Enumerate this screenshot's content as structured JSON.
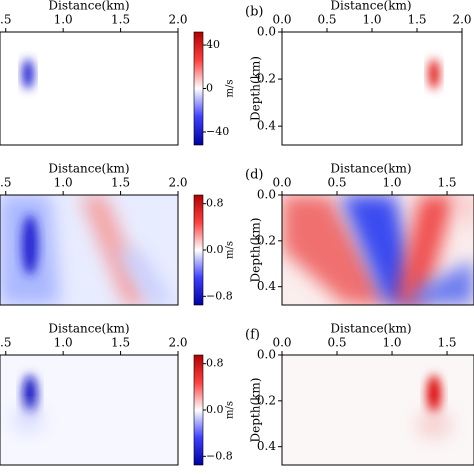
{
  "chart_data": [
    {
      "type": "heatmap",
      "xlabel": "Distance(km)",
      "xlim": [
        0.45,
        2.0
      ],
      "ylim": [
        0,
        0.48
      ],
      "xticks": [
        {
          "value": 0.5,
          "label": ".5"
        },
        {
          "value": 1.0,
          "label": "1.0"
        },
        {
          "value": 1.5,
          "label": "1.5"
        },
        {
          "value": 2.0,
          "label": "2.0"
        }
      ],
      "colorbar": {
        "label": "m/s",
        "lim": [
          -52,
          52
        ],
        "ticks": [
          40,
          0,
          {
            "value": -40,
            "label": "−40"
          }
        ]
      }
    },
    {
      "type": "heatmap",
      "panel_label": "(b)",
      "xlabel": "Distance(km)",
      "ylabel": "Depth(km)",
      "xlim": [
        0,
        2.0
      ],
      "ylim": [
        0,
        0.48
      ],
      "xticks": [
        {
          "value": 0,
          "label": "0.0"
        },
        {
          "value": 0.5,
          "label": "0.5"
        },
        {
          "value": 1.0,
          "label": "1.0"
        },
        {
          "value": 1.5,
          "label": "1.5"
        },
        {
          "value": 2.0,
          "label": "2.0"
        }
      ],
      "yticks": [
        {
          "value": 0,
          "label": "0.0"
        },
        0.2,
        0.4
      ]
    },
    {
      "type": "heatmap",
      "xlabel": "Distance(km)",
      "xlim": [
        0.45,
        2.0
      ],
      "ylim": [
        0,
        0.48
      ],
      "xticks": [
        {
          "value": 0.5,
          "label": ".5"
        },
        {
          "value": 1.0,
          "label": "1.0"
        },
        {
          "value": 1.5,
          "label": "1.5"
        },
        {
          "value": 2.0,
          "label": "2.0"
        }
      ],
      "colorbar": {
        "label": "m/s",
        "lim": [
          -0.95,
          0.95
        ],
        "ticks": [
          0.8,
          {
            "value": 0,
            "label": "0.0"
          },
          {
            "value": -0.8,
            "label": "−0.8"
          }
        ]
      }
    },
    {
      "type": "heatmap",
      "panel_label": "(d)",
      "xlabel": "Distance(km)",
      "ylabel": "Depth(km)",
      "xlim": [
        0,
        1.745
      ],
      "ylim": [
        0,
        0.48
      ],
      "xticks": [
        {
          "value": 0,
          "label": "0.0"
        },
        {
          "value": 0.5,
          "label": "0.5"
        },
        {
          "value": 1.0,
          "label": "1.0"
        },
        {
          "value": 1.5,
          "label": "1.5"
        }
      ],
      "yticks": [
        {
          "value": 0,
          "label": "0.0"
        },
        0.2,
        0.4
      ]
    },
    {
      "type": "heatmap",
      "xlabel": "Distance(km)",
      "xlim": [
        0.45,
        2.0
      ],
      "ylim": [
        0,
        0.48
      ],
      "xticks": [
        {
          "value": 0.5,
          "label": ".5"
        },
        {
          "value": 1.0,
          "label": "1.0"
        },
        {
          "value": 1.5,
          "label": "1.5"
        },
        {
          "value": 2.0,
          "label": "2.0"
        }
      ],
      "colorbar": {
        "label": "m/s",
        "lim": [
          -0.95,
          0.95
        ],
        "ticks": [
          0.8,
          {
            "value": 0,
            "label": "0.0"
          },
          {
            "value": -0.8,
            "label": "−0.8"
          }
        ]
      }
    },
    {
      "type": "heatmap",
      "panel_label": "(f)",
      "xlabel": "Distance(km)",
      "ylabel": "Depth(km)",
      "xlim": [
        0,
        1.745
      ],
      "ylim": [
        0,
        0.48
      ],
      "xticks": [
        {
          "value": 0,
          "label": "0.0"
        },
        {
          "value": 0.5,
          "label": "0.5"
        },
        {
          "value": 1.0,
          "label": "1.0"
        },
        {
          "value": 1.5,
          "label": "1.5"
        }
      ],
      "yticks": [
        {
          "value": 0,
          "label": "0.0"
        },
        0.2,
        0.4
      ]
    }
  ]
}
